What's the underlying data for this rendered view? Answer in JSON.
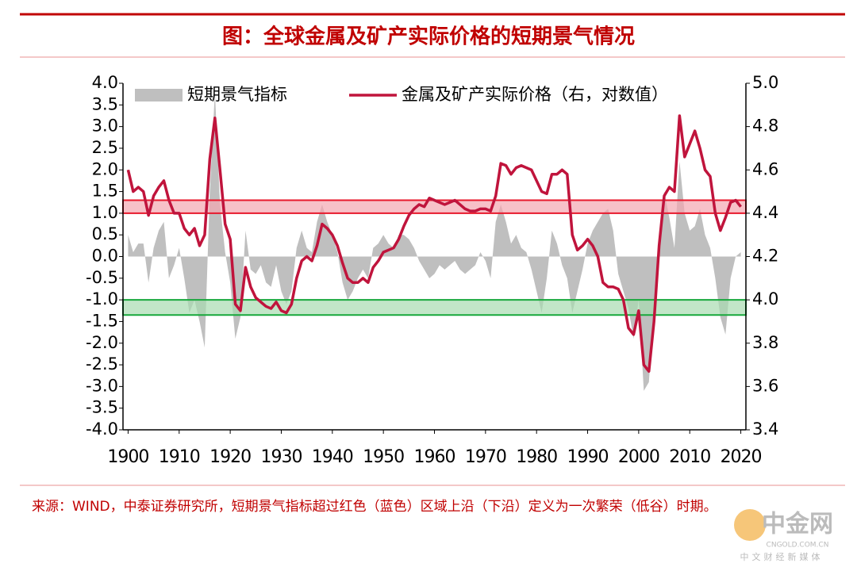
{
  "chart_data": {
    "type": "area-line",
    "title": "图：全球金属及矿产实际价格的短期景气情况",
    "source": "来源：WIND，中泰证券研究所，短期景气指标超过红色（蓝色）区域上沿（下沿）定义为一次繁荣（低谷）时期。",
    "watermark": {
      "name": "中金网",
      "url": "CNGOLD.COM.CN",
      "tagline": "中文财经新媒体"
    },
    "x": [
      1900,
      1901,
      1902,
      1903,
      1904,
      1905,
      1906,
      1907,
      1908,
      1909,
      1910,
      1911,
      1912,
      1913,
      1914,
      1915,
      1916,
      1917,
      1918,
      1919,
      1920,
      1921,
      1922,
      1923,
      1924,
      1925,
      1926,
      1927,
      1928,
      1929,
      1930,
      1931,
      1932,
      1933,
      1934,
      1935,
      1936,
      1937,
      1938,
      1939,
      1940,
      1941,
      1942,
      1943,
      1944,
      1945,
      1946,
      1947,
      1948,
      1949,
      1950,
      1951,
      1952,
      1953,
      1954,
      1955,
      1956,
      1957,
      1958,
      1959,
      1960,
      1961,
      1962,
      1963,
      1964,
      1965,
      1966,
      1967,
      1968,
      1969,
      1970,
      1971,
      1972,
      1973,
      1974,
      1975,
      1976,
      1977,
      1978,
      1979,
      1980,
      1981,
      1982,
      1983,
      1984,
      1985,
      1986,
      1987,
      1988,
      1989,
      1990,
      1991,
      1992,
      1993,
      1994,
      1995,
      1996,
      1997,
      1998,
      1999,
      2000,
      2001,
      2002,
      2003,
      2004,
      2005,
      2006,
      2007,
      2008,
      2009,
      2010,
      2011,
      2012,
      2013,
      2014,
      2015,
      2016,
      2017,
      2018,
      2019,
      2020
    ],
    "series": [
      {
        "name": "短期景气指标",
        "color": "#bfbfbf",
        "kind": "area",
        "axis": "y",
        "values": [
          0.5,
          0.1,
          0.3,
          0.3,
          -0.6,
          0.2,
          0.6,
          0.8,
          -0.5,
          -0.2,
          0.2,
          -0.5,
          -1.3,
          -1.0,
          -1.5,
          -2.1,
          1.5,
          3.8,
          1.2,
          0.1,
          -0.6,
          -1.9,
          -1.4,
          0.6,
          -0.3,
          -0.4,
          -0.2,
          -0.6,
          -0.7,
          -0.2,
          -0.8,
          -1.1,
          -0.8,
          0.2,
          0.6,
          0.2,
          0.1,
          0.8,
          1.2,
          0.8,
          0.5,
          0.1,
          -0.6,
          -1.0,
          -0.8,
          -0.5,
          -0.3,
          -0.5,
          0.2,
          0.3,
          0.5,
          0.3,
          0.2,
          0.5,
          0.5,
          0.4,
          0.2,
          -0.1,
          -0.3,
          -0.5,
          -0.4,
          -0.2,
          -0.3,
          -0.2,
          -0.1,
          -0.3,
          -0.4,
          -0.3,
          -0.2,
          0.1,
          -0.1,
          -0.5,
          0.8,
          1.2,
          0.8,
          0.3,
          0.5,
          0.2,
          0.1,
          -0.3,
          -0.8,
          -1.3,
          -0.5,
          0.6,
          0.3,
          -0.2,
          -0.5,
          -1.3,
          -0.8,
          -0.3,
          0.3,
          0.6,
          0.8,
          1.0,
          1.1,
          0.6,
          -0.4,
          -0.8,
          -1.2,
          -1.9,
          -1.0,
          -3.1,
          -2.9,
          -1.2,
          0.5,
          1.5,
          0.9,
          0.2,
          2.2,
          1.0,
          0.6,
          0.7,
          1.1,
          0.5,
          0.2,
          -0.5,
          -1.4,
          -1.8,
          -0.5,
          0.0,
          0.1
        ]
      },
      {
        "name": "金属及矿产实际价格（右，对数值）",
        "color": "#c0143c",
        "kind": "line",
        "axis": "y2",
        "values": [
          4.6,
          4.5,
          4.52,
          4.5,
          4.39,
          4.48,
          4.52,
          4.55,
          4.46,
          4.4,
          4.4,
          4.33,
          4.3,
          4.33,
          4.25,
          4.3,
          4.65,
          4.84,
          4.6,
          4.35,
          4.28,
          3.98,
          3.95,
          4.15,
          4.06,
          4.01,
          3.99,
          3.97,
          3.96,
          3.99,
          3.95,
          3.94,
          3.98,
          4.1,
          4.18,
          4.2,
          4.18,
          4.25,
          4.35,
          4.33,
          4.3,
          4.25,
          4.17,
          4.1,
          4.08,
          4.08,
          4.1,
          4.08,
          4.15,
          4.18,
          4.22,
          4.23,
          4.24,
          4.28,
          4.34,
          4.39,
          4.42,
          4.44,
          4.43,
          4.47,
          4.46,
          4.45,
          4.44,
          4.45,
          4.46,
          4.44,
          4.42,
          4.41,
          4.41,
          4.42,
          4.42,
          4.41,
          4.48,
          4.63,
          4.62,
          4.58,
          4.61,
          4.62,
          4.61,
          4.6,
          4.55,
          4.5,
          4.49,
          4.58,
          4.58,
          4.6,
          4.58,
          4.3,
          4.23,
          4.25,
          4.28,
          4.25,
          4.2,
          4.08,
          4.06,
          4.06,
          4.05,
          4.0,
          3.87,
          3.84,
          3.95,
          3.7,
          3.67,
          3.9,
          4.25,
          4.48,
          4.52,
          4.5,
          4.85,
          4.66,
          4.72,
          4.78,
          4.7,
          4.6,
          4.57,
          4.4,
          4.32,
          4.38,
          4.45,
          4.46,
          4.43
        ]
      }
    ],
    "bands": [
      {
        "from": 1.0,
        "to": 1.3,
        "fill": "#f4a6b0",
        "stroke": "#e8192c"
      },
      {
        "from": -1.0,
        "to": -1.35,
        "fill": "#a8dcb0",
        "stroke": "#18a83c"
      }
    ],
    "xlim": [
      1899,
      2021
    ],
    "xticks": [
      1900,
      1910,
      1920,
      1930,
      1940,
      1950,
      1960,
      1970,
      1980,
      1990,
      2000,
      2010,
      2020
    ],
    "ylim": [
      -4,
      4
    ],
    "yticks": [
      {
        "value": 4,
        "label": "4.0"
      },
      3.5,
      {
        "value": 3,
        "label": "3.0"
      },
      2.5,
      {
        "value": 2,
        "label": "2.0"
      },
      1.5,
      {
        "value": 1,
        "label": "1.0"
      },
      0.5,
      {
        "value": 0,
        "label": "0.0"
      },
      -0.5,
      {
        "value": -1,
        "label": "-1.0"
      },
      -1.5,
      {
        "value": -2,
        "label": "-2.0"
      },
      -2.5,
      {
        "value": -3,
        "label": "-3.0"
      },
      -3.5,
      {
        "value": -4,
        "label": "-4.0"
      }
    ],
    "y2lim": [
      3.4,
      5.0
    ],
    "y2ticks": [
      {
        "value": 5,
        "label": "5.0"
      },
      4.8,
      4.6,
      4.4,
      4.2,
      {
        "value": 4,
        "label": "4.0"
      },
      3.8,
      3.6,
      3.4
    ],
    "legend": "top"
  }
}
